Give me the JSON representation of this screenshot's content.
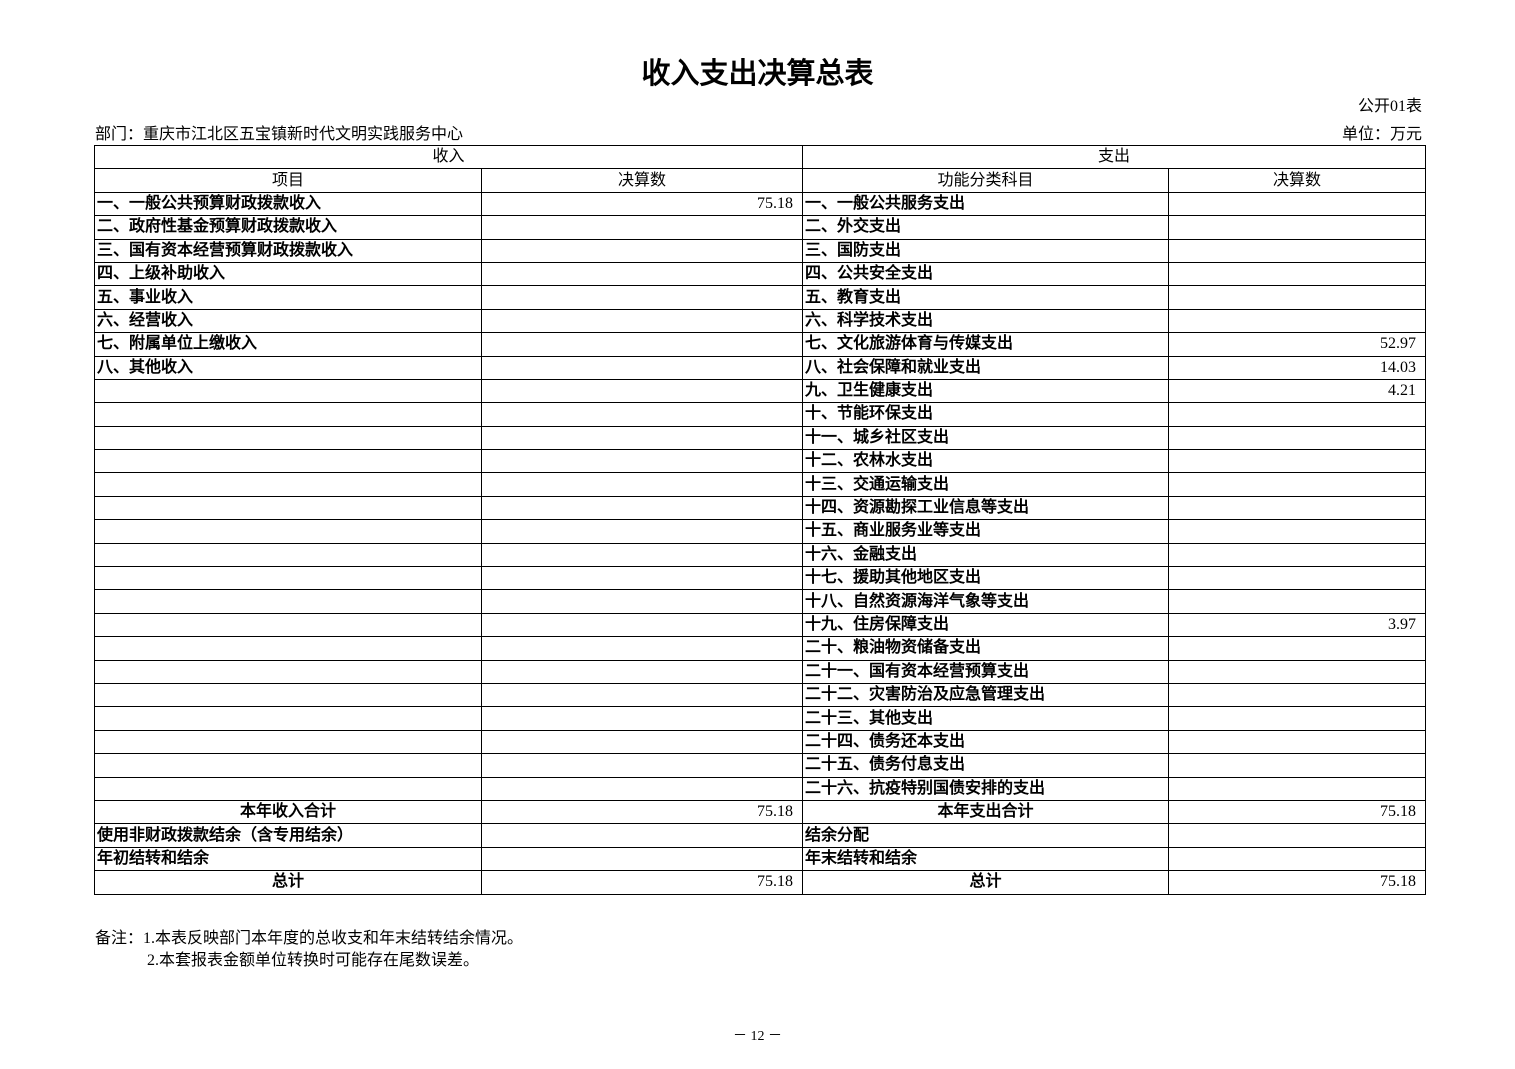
{
  "title": "收入支出决算总表",
  "form_no": "公开01表",
  "department": "部门：重庆市江北区五宝镇新时代文明实践服务中心",
  "unit": "单位：万元",
  "header": {
    "income": "收入",
    "expenditure": "支出",
    "item": "项目",
    "amount": "决算数",
    "func_item": "功能分类科目",
    "amount2": "决算数"
  },
  "income_rows": [
    {
      "label": "一、一般公共预算财政拨款收入",
      "value": "75.18"
    },
    {
      "label": "二、政府性基金预算财政拨款收入",
      "value": ""
    },
    {
      "label": "三、国有资本经营预算财政拨款收入",
      "value": ""
    },
    {
      "label": "四、上级补助收入",
      "value": ""
    },
    {
      "label": "五、事业收入",
      "value": ""
    },
    {
      "label": "六、经营收入",
      "value": ""
    },
    {
      "label": "七、附属单位上缴收入",
      "value": ""
    },
    {
      "label": "八、其他收入",
      "value": ""
    }
  ],
  "expenditure_rows": [
    {
      "label": "一、一般公共服务支出",
      "value": ""
    },
    {
      "label": "二、外交支出",
      "value": ""
    },
    {
      "label": "三、国防支出",
      "value": ""
    },
    {
      "label": "四、公共安全支出",
      "value": ""
    },
    {
      "label": "五、教育支出",
      "value": ""
    },
    {
      "label": "六、科学技术支出",
      "value": ""
    },
    {
      "label": "七、文化旅游体育与传媒支出",
      "value": "52.97"
    },
    {
      "label": "八、社会保障和就业支出",
      "value": "14.03"
    },
    {
      "label": "九、卫生健康支出",
      "value": "4.21"
    },
    {
      "label": "十、节能环保支出",
      "value": ""
    },
    {
      "label": "十一、城乡社区支出",
      "value": ""
    },
    {
      "label": "十二、农林水支出",
      "value": ""
    },
    {
      "label": "十三、交通运输支出",
      "value": ""
    },
    {
      "label": "十四、资源勘探工业信息等支出",
      "value": ""
    },
    {
      "label": "十五、商业服务业等支出",
      "value": ""
    },
    {
      "label": "十六、金融支出",
      "value": ""
    },
    {
      "label": "十七、援助其他地区支出",
      "value": ""
    },
    {
      "label": "十八、自然资源海洋气象等支出",
      "value": ""
    },
    {
      "label": "十九、住房保障支出",
      "value": "3.97"
    },
    {
      "label": "二十、粮油物资储备支出",
      "value": ""
    },
    {
      "label": "二十一、国有资本经营预算支出",
      "value": ""
    },
    {
      "label": "二十二、灾害防治及应急管理支出",
      "value": ""
    },
    {
      "label": "二十三、其他支出",
      "value": ""
    },
    {
      "label": "二十四、债务还本支出",
      "value": ""
    },
    {
      "label": "二十五、债务付息支出",
      "value": ""
    },
    {
      "label": "二十六、抗疫特别国债安排的支出",
      "value": ""
    }
  ],
  "summary_rows": [
    {
      "in_label": "本年收入合计",
      "in_value": "75.18",
      "out_label": "本年支出合计",
      "out_value": "75.18",
      "centered": true
    },
    {
      "in_label": "使用非财政拨款结余（含专用结余）",
      "in_value": "",
      "out_label": "结余分配",
      "out_value": "",
      "centered": false
    },
    {
      "in_label": "年初结转和结余",
      "in_value": "",
      "out_label": "年末结转和结余",
      "out_value": "",
      "centered": false
    },
    {
      "in_label": "总计",
      "in_value": "75.18",
      "out_label": "总计",
      "out_value": "75.18",
      "centered": true
    }
  ],
  "notes": [
    "备注：1.本表反映部门本年度的总收支和年末结转结余情况。",
    "2.本套报表金额单位转换时可能存在尾数误差。"
  ],
  "page_number": "－ 12 －"
}
